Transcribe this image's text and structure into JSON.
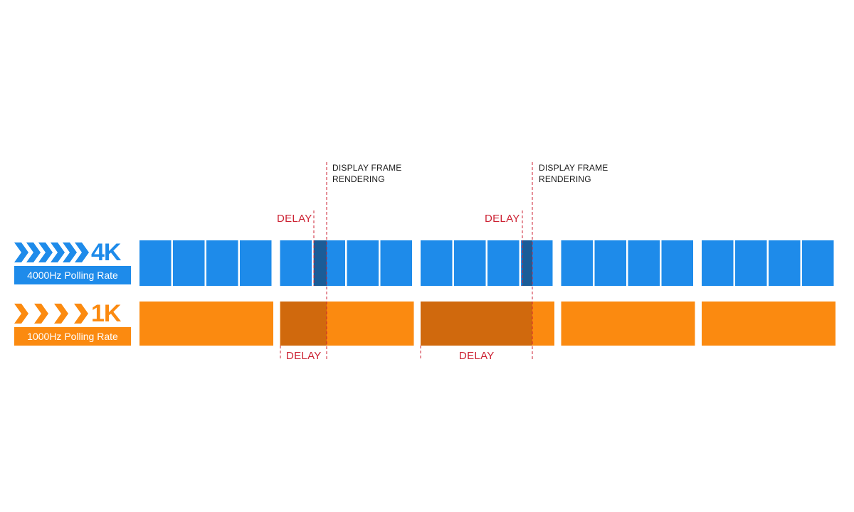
{
  "colors": {
    "blue": "#1e8bea",
    "blue_dark": "#1a5c98",
    "orange": "#fb8a10",
    "orange_dark": "#d0690d",
    "delay_red": "#cc2233"
  },
  "rows": {
    "fourk": {
      "title": "4K",
      "subtitle": "4000Hz Polling Rate",
      "icon": "chevron-right-icon"
    },
    "onek": {
      "title": "1K",
      "subtitle": "1000Hz Polling Rate",
      "icon": "chevron-right-icon"
    }
  },
  "annotations": {
    "frame1": "DISPLAY FRAME\nRENDERING",
    "frame2": "DISPLAY FRAME\nRENDERING",
    "delay_label": "DELAY"
  },
  "diagram": {
    "blue_groups": 5,
    "blue_cells_per_group": 4,
    "orange_groups": 5,
    "frames_at_cell": [
      1.25,
      3.75
    ],
    "blue_highlight_cells": [
      5,
      13
    ],
    "orange_highlight_groups": [
      1,
      2
    ]
  }
}
